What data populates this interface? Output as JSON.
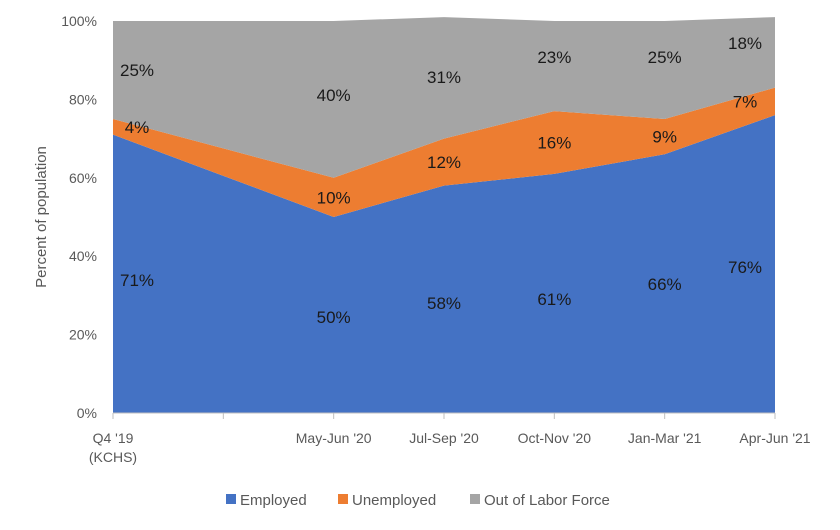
{
  "chart_data": {
    "type": "area",
    "stacked": true,
    "categories": [
      "Q4 '19 (KCHS)",
      "",
      "May-Jun '20",
      "Jul-Sep '20",
      "Oct-Nov '20",
      "Jan-Mar '21",
      "Apr-Jun '21"
    ],
    "category_lines": [
      [
        "Q4 '19",
        "(KCHS)"
      ],
      [
        ""
      ],
      [
        "May-Jun '20"
      ],
      [
        "Jul-Sep '20"
      ],
      [
        "Oct-Nov '20"
      ],
      [
        "Jan-Mar '21"
      ],
      [
        "Apr-Jun '21"
      ]
    ],
    "series": [
      {
        "name": "Employed",
        "color": "#4472C4",
        "values": [
          71,
          60.5,
          50,
          58,
          61,
          66,
          76
        ],
        "labels": [
          "71%",
          "",
          "50%",
          "58%",
          "61%",
          "66%",
          "76%"
        ]
      },
      {
        "name": "Unemployed",
        "color": "#ED7D31",
        "values": [
          4,
          7,
          10,
          12,
          16,
          9,
          7
        ],
        "labels": [
          "4%",
          "",
          "10%",
          "12%",
          "16%",
          "9%",
          "7%"
        ]
      },
      {
        "name": "Out of Labor Force",
        "color": "#A5A5A5",
        "values": [
          25,
          32.5,
          40,
          31,
          23,
          25,
          18
        ],
        "labels": [
          "25%",
          "",
          "40%",
          "31%",
          "23%",
          "25%",
          "18%"
        ]
      }
    ],
    "ylabel": "Percent of population",
    "ylim": [
      0,
      100
    ],
    "yticks": [
      "0%",
      "20%",
      "40%",
      "60%",
      "80%",
      "100%"
    ],
    "legend_position": "bottom",
    "grid": false
  }
}
